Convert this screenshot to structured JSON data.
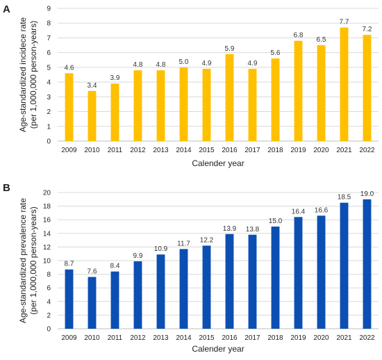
{
  "chart_data": [
    {
      "type": "bar",
      "panel": "A",
      "categories": [
        "2009",
        "2010",
        "2011",
        "2012",
        "2013",
        "2014",
        "2015",
        "2016",
        "2017",
        "2018",
        "2019",
        "2020",
        "2021",
        "2022"
      ],
      "values": [
        4.6,
        3.4,
        3.9,
        4.8,
        4.8,
        5.0,
        4.9,
        5.9,
        4.9,
        5.6,
        6.8,
        6.5,
        7.7,
        7.2
      ],
      "data_labels": [
        "4.6",
        "3.4",
        "3.9",
        "4.8",
        "4.8",
        "5.0",
        "4.9",
        "5.9",
        "4.9",
        "5.6",
        "6.8",
        "6.5",
        "7.7",
        "7.2"
      ],
      "xlabel": "Calender year",
      "ylabel_line1": "Age-standardized incidece rate",
      "ylabel_line2": "(per 1,000,000 person-years)",
      "ylim": [
        0,
        9
      ],
      "yticks": [
        "0",
        "1",
        "2",
        "3",
        "4",
        "5",
        "6",
        "7",
        "8",
        "9"
      ],
      "grid": true,
      "color": "#FFC000"
    },
    {
      "type": "bar",
      "panel": "B",
      "categories": [
        "2009",
        "2010",
        "2011",
        "2012",
        "2013",
        "2014",
        "2015",
        "2016",
        "2017",
        "2018",
        "2019",
        "2020",
        "2021",
        "2022"
      ],
      "values": [
        8.7,
        7.6,
        8.4,
        9.9,
        10.9,
        11.7,
        12.2,
        13.9,
        13.8,
        15.0,
        16.4,
        16.6,
        18.5,
        19.0
      ],
      "data_labels": [
        "8.7",
        "7.6",
        "8.4",
        "9.9",
        "10.9",
        "11.7",
        "12.2",
        "13.9",
        "13.8",
        "15.0",
        "16.4",
        "16.6",
        "18.5",
        "19.0"
      ],
      "xlabel": "Calender year",
      "ylabel_line1": "Age-standardized prevalence rate",
      "ylabel_line2": "(per 1,000,000 person-years)",
      "ylim": [
        0,
        20
      ],
      "yticks": [
        "0",
        "2",
        "4",
        "6",
        "8",
        "10",
        "12",
        "14",
        "16",
        "18",
        "20"
      ],
      "grid": true,
      "color": "#0B4FB3"
    }
  ]
}
